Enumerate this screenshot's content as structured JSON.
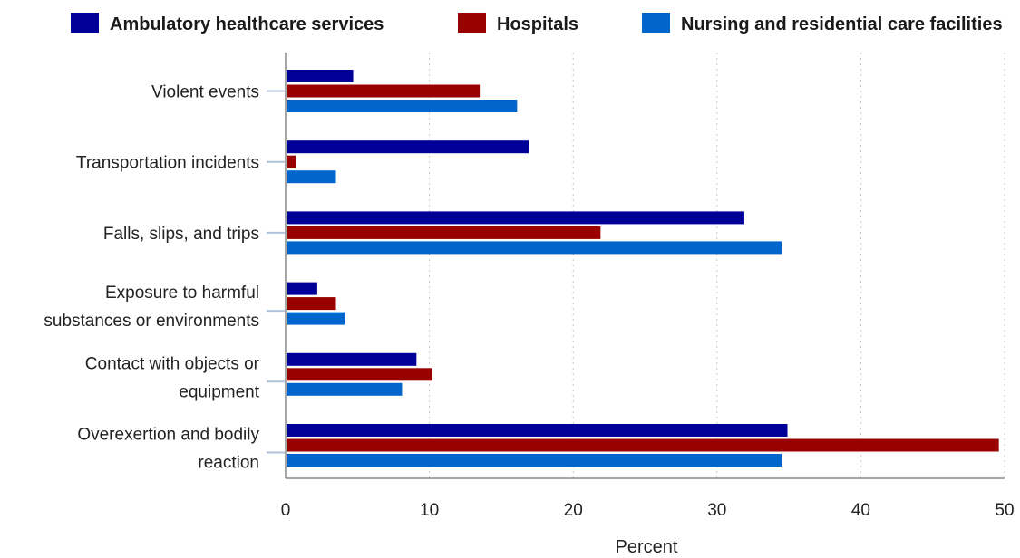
{
  "chart_data": {
    "type": "bar",
    "orientation": "horizontal",
    "categories": [
      [
        "Violent events"
      ],
      [
        "Transportation incidents"
      ],
      [
        "Falls, slips, and trips"
      ],
      [
        "Exposure to harmful",
        "substances or environments"
      ],
      [
        "Contact with objects or",
        "equipment"
      ],
      [
        "Overexertion and bodily",
        "reaction"
      ]
    ],
    "series": [
      {
        "name": "Ambulatory healthcare services",
        "color": "#000099",
        "values": [
          4.7,
          16.9,
          31.9,
          2.2,
          9.1,
          34.9
        ]
      },
      {
        "name": "Hospitals",
        "color": "#990000",
        "values": [
          13.5,
          0.7,
          21.9,
          3.5,
          10.2,
          49.6
        ]
      },
      {
        "name": "Nursing and residential care facilities",
        "color": "#0066cc",
        "values": [
          16.1,
          3.5,
          34.5,
          4.1,
          8.1,
          34.5
        ]
      }
    ],
    "xlabel": "Percent",
    "xlim": [
      0,
      50
    ],
    "xticks": [
      0,
      10,
      20,
      30,
      40,
      50
    ],
    "grid": "vertical dotted",
    "legend_position": "top"
  }
}
